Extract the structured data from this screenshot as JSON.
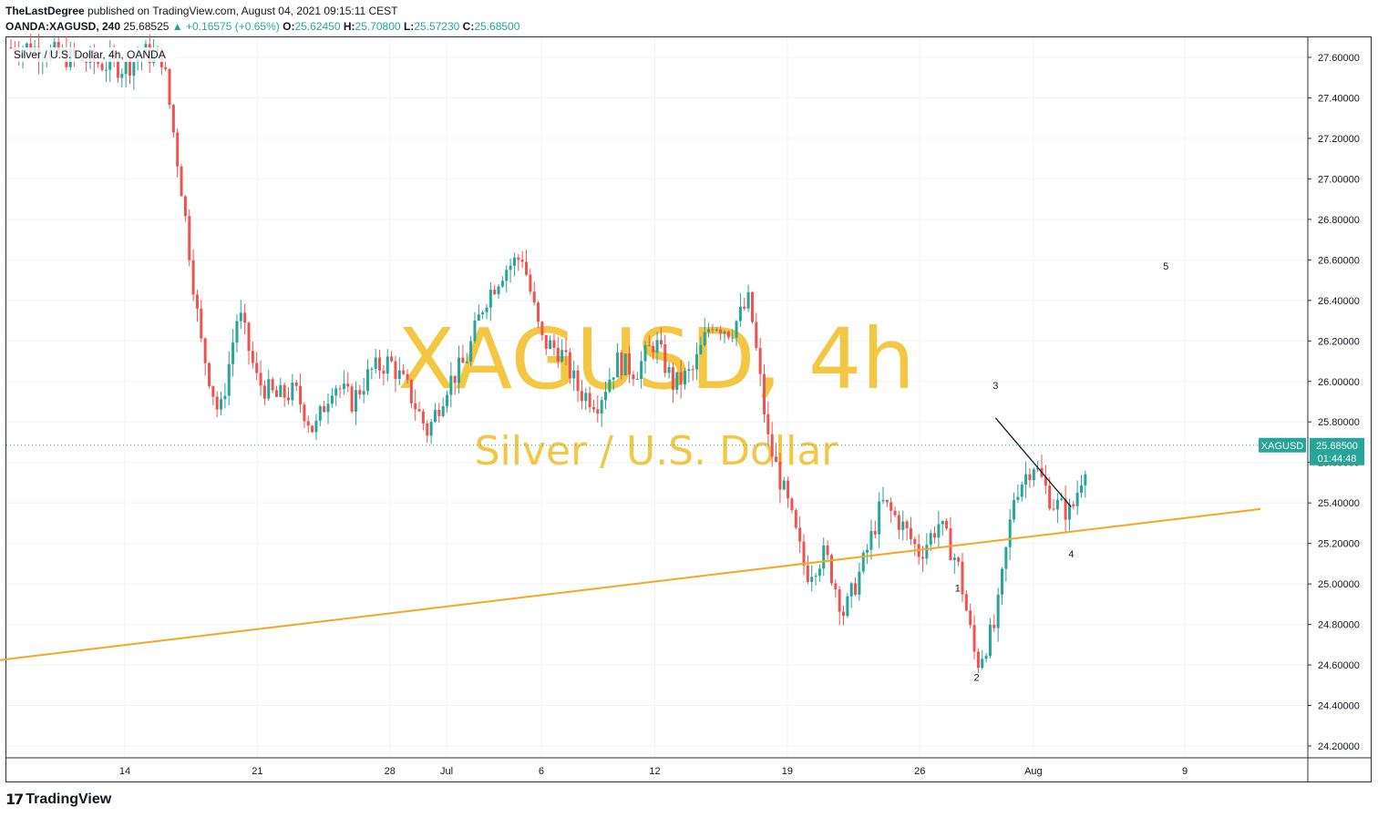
{
  "header": {
    "author": "TheLastDegree",
    "published_text": "published on TradingView.com, August 04, 2021 09:15:11 CEST",
    "symbol": "OANDA:XAGUSD, 240",
    "price": "25.68525",
    "arrow": "▲",
    "change": "+0.16575 (+0.65%)",
    "open_label": "O:",
    "open": "25.62450",
    "high_label": "H:",
    "high": "25.70800",
    "low_label": "L:",
    "low": "25.57230",
    "close_label": "C:",
    "close": "25.68500"
  },
  "colors": {
    "up": "#26a69a",
    "down": "#ef5350",
    "trendline": "#f5a623",
    "watermark": "#f2c230",
    "price_badge": "#26a69a",
    "grid": "#f0f3fa"
  },
  "footer": {
    "logo_text": "TradingView",
    "logo_icon": "tradingview-logo-icon"
  },
  "chart_data": {
    "type": "candlestick",
    "legend": "Silver / U.S. Dollar, 4h, OANDA",
    "watermark": {
      "title": "XAGUSD, 4h",
      "subtitle": "Silver / U.S. Dollar"
    },
    "y_ticks": [
      "24.20000",
      "24.40000",
      "24.60000",
      "24.80000",
      "25.00000",
      "25.20000",
      "25.40000",
      "25.60000",
      "25.80000",
      "26.00000",
      "26.20000",
      "26.40000",
      "26.60000",
      "26.80000",
      "27.00000",
      "27.20000",
      "27.40000",
      "27.60000"
    ],
    "x_ticks": [
      "14",
      "21",
      "28",
      "Jul",
      "6",
      "12",
      "19",
      "26",
      "Aug",
      "9"
    ],
    "ylim": [
      24.1,
      27.7
    ],
    "grid": true,
    "last_price": {
      "symbol": "XAGUSD",
      "value": "25.68500",
      "countdown": "01:44:48"
    },
    "annotations": [
      {
        "label": "1",
        "date": "2021-07-28",
        "price": 24.98
      },
      {
        "label": "2",
        "date": "2021-07-29",
        "price": 24.54
      },
      {
        "label": "3",
        "date": "2021-07-30",
        "price": 25.98
      },
      {
        "label": "4",
        "date": "2021-08-03",
        "price": 25.15
      },
      {
        "label": "5",
        "date": "2021-08-08",
        "price": 26.57
      }
    ],
    "trendlines": [
      {
        "name": "support",
        "color": "#f5a623",
        "from": {
          "date": "2021-06-07",
          "price": 24.62
        },
        "to": {
          "date": "2021-08-13",
          "price": 25.37
        }
      },
      {
        "name": "wedge",
        "color": "#131722",
        "from": {
          "date": "2021-07-30",
          "price": 25.82
        },
        "to": {
          "date": "2021-08-03",
          "price": 25.38
        }
      }
    ],
    "ohlc_points": [
      {
        "date": "2021-06-09",
        "price": 27.65
      },
      {
        "date": "2021-06-11",
        "price": 27.6
      },
      {
        "date": "2021-06-14",
        "price": 27.55
      },
      {
        "date": "2021-06-15",
        "price": 27.62
      },
      {
        "date": "2021-06-16",
        "price": 27.6
      },
      {
        "date": "2021-06-17",
        "price": 26.95
      },
      {
        "date": "2021-06-18",
        "price": 26.2
      },
      {
        "date": "2021-06-19",
        "price": 25.82
      },
      {
        "date": "2021-06-20",
        "price": 26.35
      },
      {
        "date": "2021-06-21",
        "price": 26.0
      },
      {
        "date": "2021-06-22",
        "price": 25.92
      },
      {
        "date": "2021-06-23",
        "price": 25.95
      },
      {
        "date": "2021-06-24",
        "price": 25.75
      },
      {
        "date": "2021-06-25",
        "price": 26.0
      },
      {
        "date": "2021-06-26",
        "price": 25.9
      },
      {
        "date": "2021-06-27",
        "price": 26.05
      },
      {
        "date": "2021-06-28",
        "price": 26.1
      },
      {
        "date": "2021-06-29",
        "price": 25.95
      },
      {
        "date": "2021-06-30",
        "price": 25.75
      },
      {
        "date": "2021-07-01",
        "price": 25.98
      },
      {
        "date": "2021-07-02",
        "price": 26.1
      },
      {
        "date": "2021-07-03",
        "price": 26.4
      },
      {
        "date": "2021-07-04",
        "price": 26.55
      },
      {
        "date": "2021-07-05",
        "price": 26.62
      },
      {
        "date": "2021-07-06",
        "price": 26.2
      },
      {
        "date": "2021-07-07",
        "price": 26.15
      },
      {
        "date": "2021-07-08",
        "price": 25.95
      },
      {
        "date": "2021-07-09",
        "price": 25.9
      },
      {
        "date": "2021-07-10",
        "price": 26.1
      },
      {
        "date": "2021-07-11",
        "price": 26.05
      },
      {
        "date": "2021-07-12",
        "price": 26.2
      },
      {
        "date": "2021-07-13",
        "price": 25.98
      },
      {
        "date": "2021-07-14",
        "price": 26.05
      },
      {
        "date": "2021-07-15",
        "price": 26.3
      },
      {
        "date": "2021-07-16",
        "price": 26.25
      },
      {
        "date": "2021-07-17",
        "price": 26.4
      },
      {
        "date": "2021-07-18",
        "price": 25.7
      },
      {
        "date": "2021-07-19",
        "price": 25.4
      },
      {
        "date": "2021-07-20",
        "price": 25.05
      },
      {
        "date": "2021-07-21",
        "price": 25.15
      },
      {
        "date": "2021-07-22",
        "price": 24.85
      },
      {
        "date": "2021-07-23",
        "price": 25.1
      },
      {
        "date": "2021-07-24",
        "price": 25.4
      },
      {
        "date": "2021-07-25",
        "price": 25.3
      },
      {
        "date": "2021-07-26",
        "price": 25.15
      },
      {
        "date": "2021-07-27",
        "price": 25.3
      },
      {
        "date": "2021-07-28",
        "price": 25.1
      },
      {
        "date": "2021-07-29",
        "price": 24.6
      },
      {
        "date": "2021-07-30",
        "price": 24.8
      },
      {
        "date": "2021-07-31",
        "price": 25.45
      },
      {
        "date": "2021-08-01",
        "price": 25.6
      },
      {
        "date": "2021-08-02",
        "price": 25.4
      },
      {
        "date": "2021-08-03",
        "price": 25.35
      },
      {
        "date": "2021-08-04",
        "price": 25.685
      }
    ]
  }
}
